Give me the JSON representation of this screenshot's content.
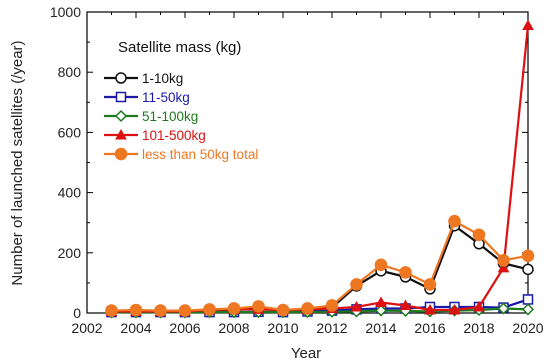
{
  "chart_data": {
    "type": "line",
    "xlabel": "Year",
    "ylabel": "Number of launched satellites (/year)",
    "xlim": [
      2002,
      2020
    ],
    "ylim": [
      0,
      1000
    ],
    "xticks": [
      2002,
      2004,
      2006,
      2008,
      2010,
      2012,
      2014,
      2016,
      2018,
      2020
    ],
    "yticks": [
      0,
      200,
      400,
      600,
      800,
      1000
    ],
    "grid": false,
    "legend_title": "Satellite mass (kg)",
    "legend_position": "top-left",
    "x": [
      2003,
      2004,
      2005,
      2006,
      2007,
      2008,
      2009,
      2010,
      2011,
      2012,
      2013,
      2014,
      2015,
      2016,
      2017,
      2018,
      2019,
      2020
    ],
    "series": [
      {
        "name": "1-10kg",
        "color": "#111111",
        "marker": "open-circle",
        "values": [
          5,
          8,
          5,
          5,
          8,
          10,
          15,
          8,
          10,
          18,
          90,
          140,
          120,
          80,
          290,
          230,
          165,
          145
        ]
      },
      {
        "name": "11-50kg",
        "color": "#1a1aa6",
        "marker": "open-square",
        "values": [
          3,
          3,
          3,
          3,
          3,
          3,
          4,
          3,
          5,
          8,
          12,
          15,
          15,
          20,
          20,
          20,
          18,
          45
        ]
      },
      {
        "name": "51-100kg",
        "color": "#1e7a1e",
        "marker": "open-diamond",
        "values": [
          2,
          2,
          2,
          2,
          3,
          3,
          3,
          3,
          3,
          4,
          5,
          8,
          7,
          5,
          8,
          10,
          15,
          12
        ]
      },
      {
        "name": "101-500kg",
        "color": "#dd1111",
        "marker": "filled-triangle",
        "values": [
          5,
          5,
          5,
          5,
          10,
          12,
          12,
          10,
          12,
          15,
          20,
          35,
          25,
          10,
          10,
          20,
          150,
          955
        ]
      },
      {
        "name": "less than 50kg total",
        "color": "#ee7722",
        "marker": "filled-circle",
        "values": [
          8,
          10,
          8,
          8,
          12,
          15,
          22,
          10,
          15,
          25,
          95,
          160,
          135,
          95,
          305,
          260,
          175,
          190
        ]
      }
    ]
  }
}
